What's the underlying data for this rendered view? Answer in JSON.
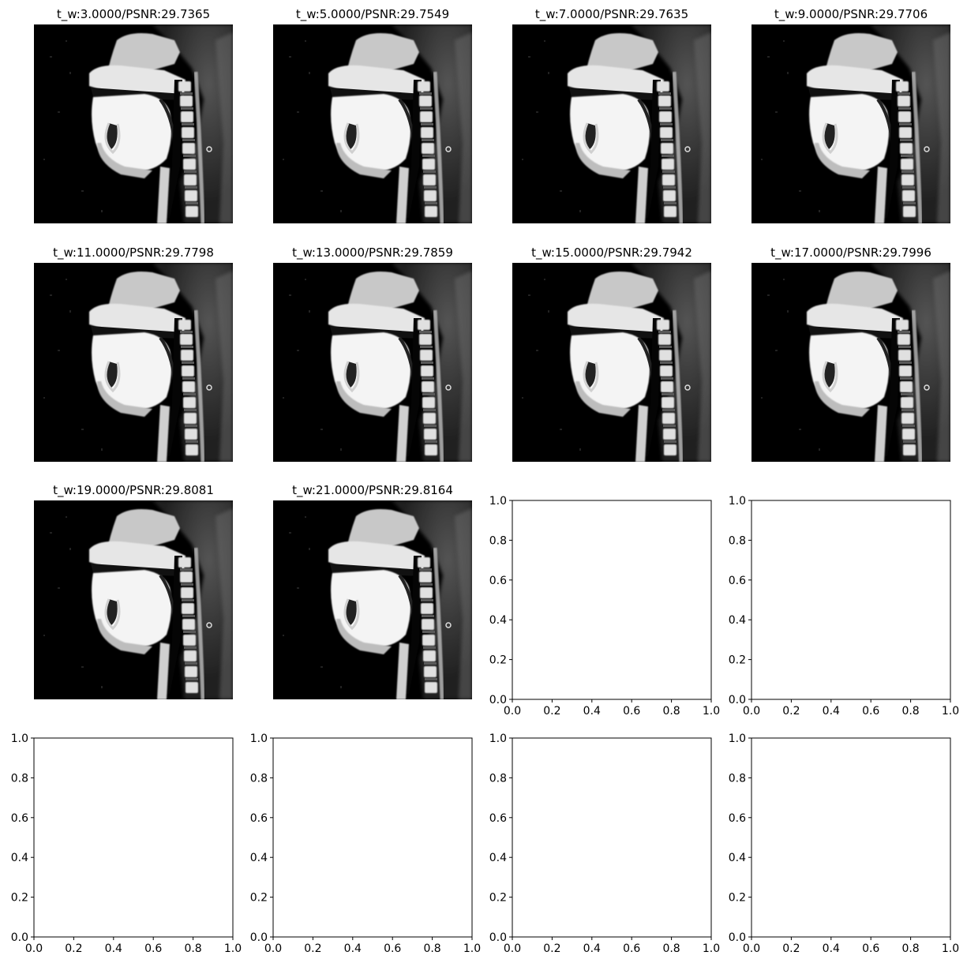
{
  "figure": {
    "image_panels": [
      {
        "title": "t_w:3.0000/PSNR:29.7365"
      },
      {
        "title": "t_w:5.0000/PSNR:29.7549"
      },
      {
        "title": "t_w:7.0000/PSNR:29.7635"
      },
      {
        "title": "t_w:9.0000/PSNR:29.7706"
      },
      {
        "title": "t_w:11.0000/PSNR:29.7798"
      },
      {
        "title": "t_w:13.0000/PSNR:29.7859"
      },
      {
        "title": "t_w:15.0000/PSNR:29.7942"
      },
      {
        "title": "t_w:17.0000/PSNR:29.7996"
      },
      {
        "title": "t_w:19.0000/PSNR:29.8081"
      },
      {
        "title": "t_w:21.0000/PSNR:29.8164"
      }
    ],
    "empty_axes_count": 6,
    "empty_axes": {
      "xlim": [
        0,
        1
      ],
      "ylim": [
        0,
        1
      ],
      "xticks": [
        "0.0",
        "0.2",
        "0.4",
        "0.6",
        "0.8",
        "1.0"
      ],
      "yticks": [
        "0.0",
        "0.2",
        "0.4",
        "0.6",
        "0.8",
        "1.0"
      ]
    },
    "image_content": "sagittal MRI of head and neck (vocal tract)"
  }
}
